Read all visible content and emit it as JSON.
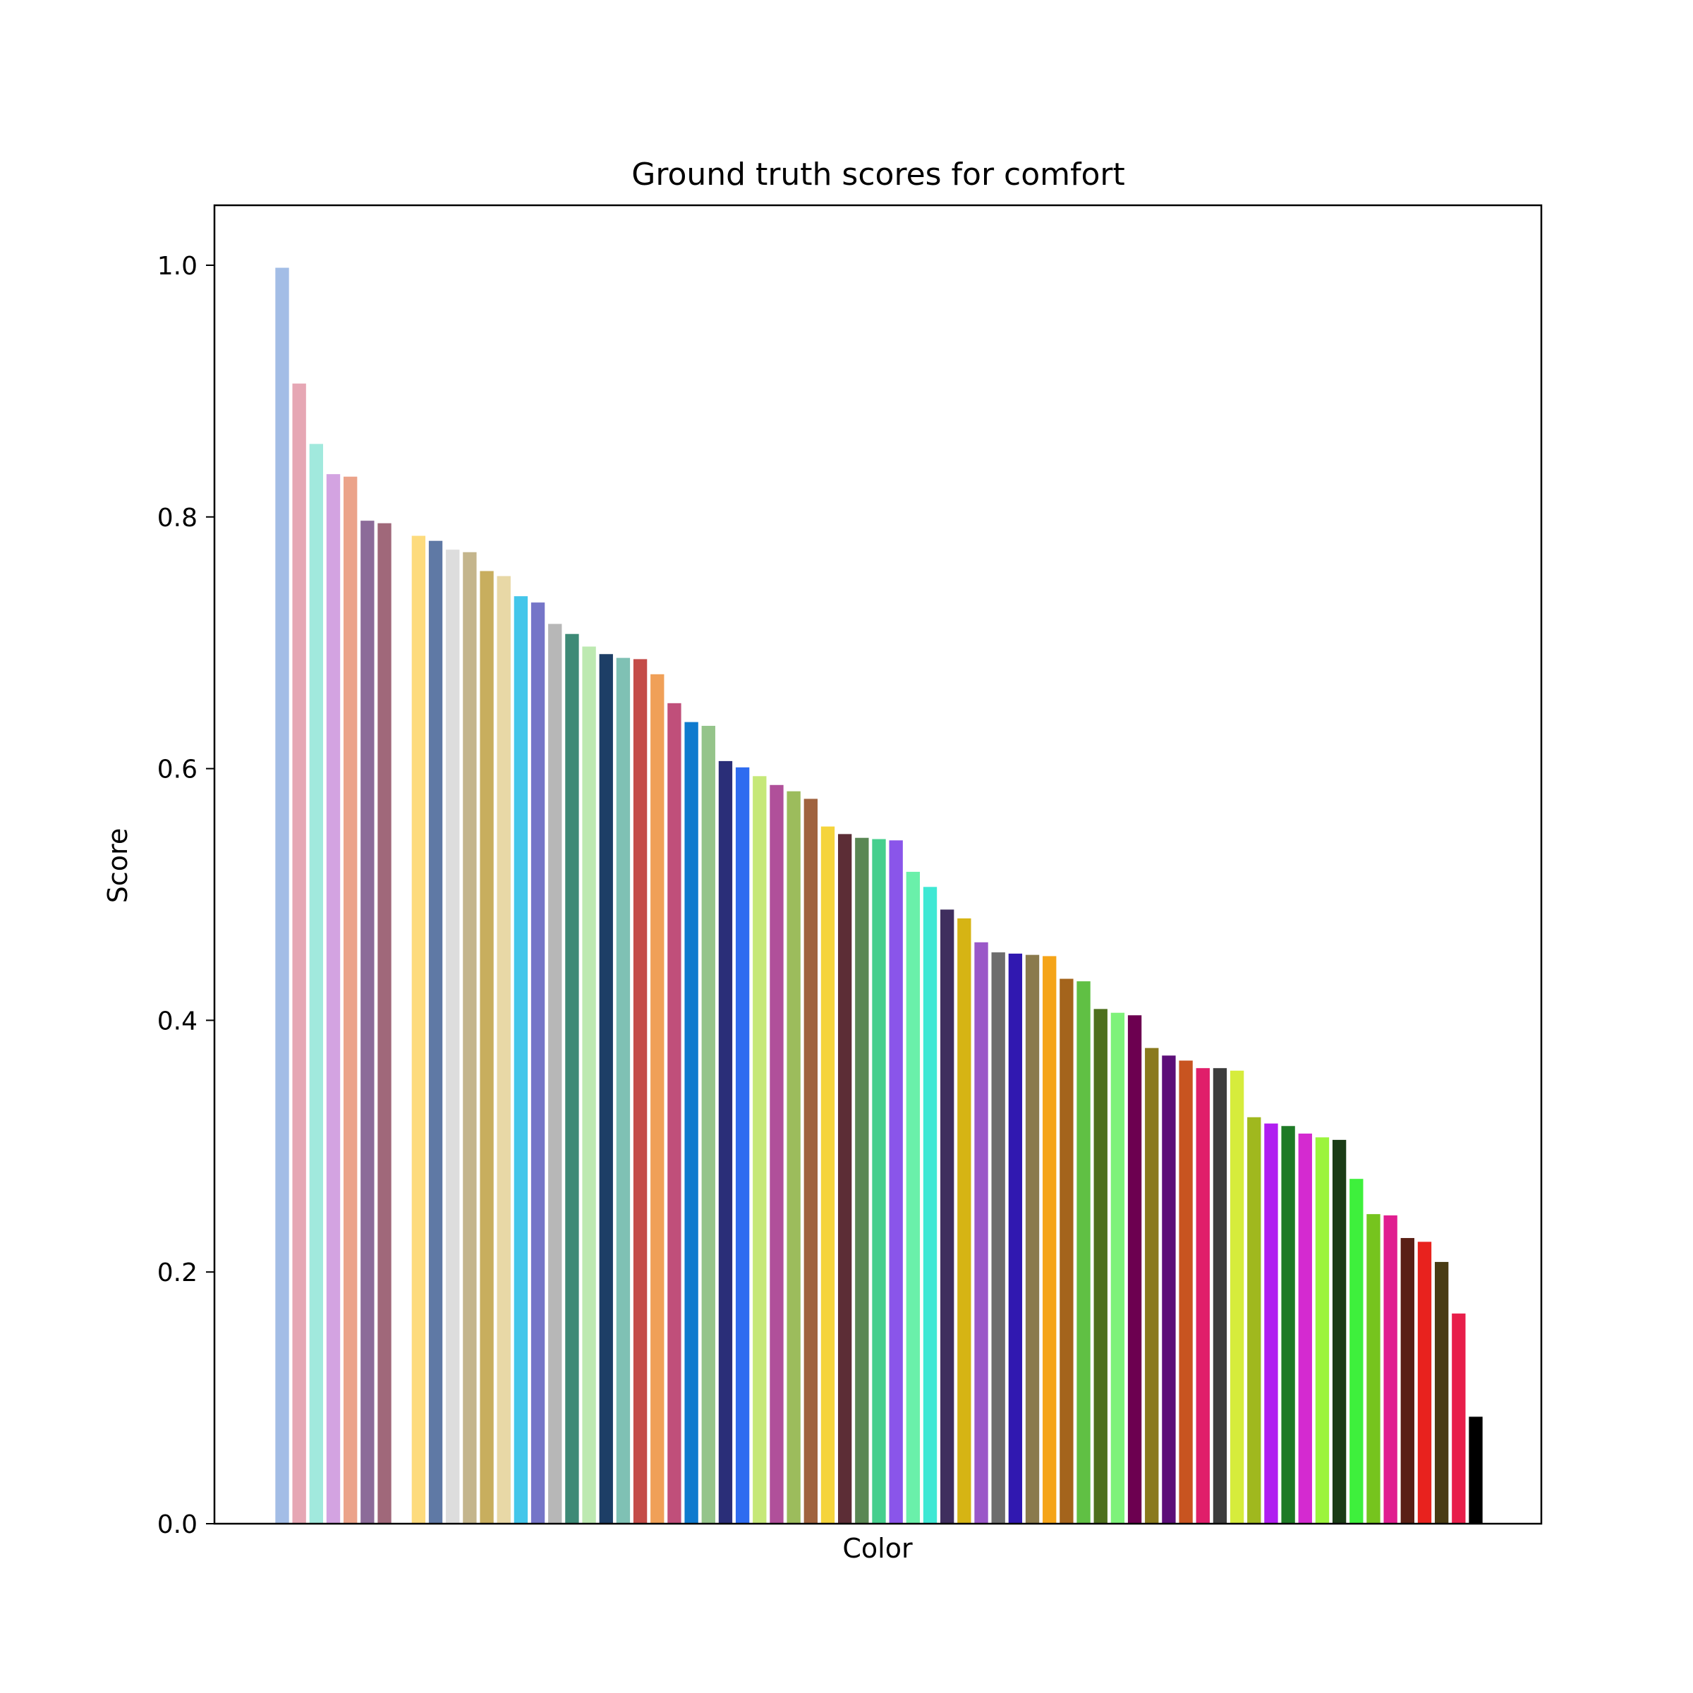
{
  "chart_data": {
    "type": "bar",
    "title": "Ground truth scores for comfort",
    "xlabel": "Color",
    "ylabel": "Score",
    "ylim": [
      0,
      1.05
    ],
    "yticks": [
      "0.0",
      "0.2",
      "0.4",
      "0.6",
      "0.8",
      "1.0"
    ],
    "grid": false,
    "bars": [
      {
        "color": "#a3bde6",
        "value": 0.998
      },
      {
        "color": "#e6a7b4",
        "value": 0.906
      },
      {
        "color": "#a1e9dd",
        "value": 0.858
      },
      {
        "color": "#d3a3e1",
        "value": 0.834
      },
      {
        "color": "#eba38a",
        "value": 0.832
      },
      {
        "color": "#8c6b99",
        "value": 0.797
      },
      {
        "color": "#a0687a",
        "value": 0.795
      },
      {
        "color": "#ffffff",
        "value": 0.0
      },
      {
        "color": "#fddb7d",
        "value": 0.785
      },
      {
        "color": "#5f79a5",
        "value": 0.781
      },
      {
        "color": "#dddddd",
        "value": 0.774
      },
      {
        "color": "#c4b58c",
        "value": 0.772
      },
      {
        "color": "#c8ae5e",
        "value": 0.757
      },
      {
        "color": "#e8d8a6",
        "value": 0.753
      },
      {
        "color": "#44c6ea",
        "value": 0.737
      },
      {
        "color": "#7575c8",
        "value": 0.732
      },
      {
        "color": "#b7b7b7",
        "value": 0.715
      },
      {
        "color": "#3d8a76",
        "value": 0.707
      },
      {
        "color": "#bde9b1",
        "value": 0.697
      },
      {
        "color": "#1d3e66",
        "value": 0.691
      },
      {
        "color": "#7fc1b4",
        "value": 0.688
      },
      {
        "color": "#c44c48",
        "value": 0.687
      },
      {
        "color": "#f0a058",
        "value": 0.675
      },
      {
        "color": "#c04f7a",
        "value": 0.652
      },
      {
        "color": "#0f7ace",
        "value": 0.637
      },
      {
        "color": "#95c48a",
        "value": 0.634
      },
      {
        "color": "#2a2e78",
        "value": 0.606
      },
      {
        "color": "#2e6cf0",
        "value": 0.601
      },
      {
        "color": "#c6e878",
        "value": 0.594
      },
      {
        "color": "#b0509a",
        "value": 0.587
      },
      {
        "color": "#9cbc5c",
        "value": 0.582
      },
      {
        "color": "#a0633f",
        "value": 0.576
      },
      {
        "color": "#f5d43c",
        "value": 0.554
      },
      {
        "color": "#5c2d36",
        "value": 0.548
      },
      {
        "color": "#5a8754",
        "value": 0.545
      },
      {
        "color": "#46cf8e",
        "value": 0.544
      },
      {
        "color": "#8a55ea",
        "value": 0.543
      },
      {
        "color": "#6af0aa",
        "value": 0.518
      },
      {
        "color": "#3fe8d4",
        "value": 0.506
      },
      {
        "color": "#3f2e5e",
        "value": 0.488
      },
      {
        "color": "#d6b414",
        "value": 0.481
      },
      {
        "color": "#9a58c8",
        "value": 0.462
      },
      {
        "color": "#6d6d6d",
        "value": 0.454
      },
      {
        "color": "#3018b0",
        "value": 0.453
      },
      {
        "color": "#8a7a4c",
        "value": 0.452
      },
      {
        "color": "#f5a418",
        "value": 0.451
      },
      {
        "color": "#a4641c",
        "value": 0.433
      },
      {
        "color": "#60c044",
        "value": 0.431
      },
      {
        "color": "#4e701e",
        "value": 0.409
      },
      {
        "color": "#7ef27a",
        "value": 0.406
      },
      {
        "color": "#6c0050",
        "value": 0.404
      },
      {
        "color": "#8a7a1e",
        "value": 0.378
      },
      {
        "color": "#5c0e78",
        "value": 0.372
      },
      {
        "color": "#c85420",
        "value": 0.368
      },
      {
        "color": "#e01e6a",
        "value": 0.362
      },
      {
        "color": "#3d3d3d",
        "value": 0.362
      },
      {
        "color": "#d6ec3c",
        "value": 0.36
      },
      {
        "color": "#a0b81e",
        "value": 0.323
      },
      {
        "color": "#b01ef0",
        "value": 0.318
      },
      {
        "color": "#1e7a26",
        "value": 0.316
      },
      {
        "color": "#d42ad0",
        "value": 0.31
      },
      {
        "color": "#9cf43c",
        "value": 0.307
      },
      {
        "color": "#1a3c16",
        "value": 0.305
      },
      {
        "color": "#3ef03c",
        "value": 0.274
      },
      {
        "color": "#76c41e",
        "value": 0.246
      },
      {
        "color": "#e01e90",
        "value": 0.245
      },
      {
        "color": "#5a2016",
        "value": 0.227
      },
      {
        "color": "#e8221e",
        "value": 0.224
      },
      {
        "color": "#4a3c14",
        "value": 0.208
      },
      {
        "color": "#e81e4a",
        "value": 0.167
      },
      {
        "color": "#000000",
        "value": 0.085
      }
    ]
  }
}
